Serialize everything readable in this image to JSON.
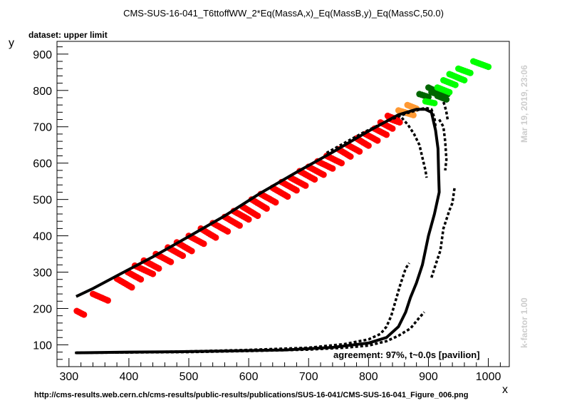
{
  "header": {
    "title": "CMS-SUS-16-041_T6ttoffWW_2*Eq(MassA,x)_Eq(MassB,y)_Eq(MassC,50.0)",
    "subtitle": "dataset: upper limit"
  },
  "annotation": "agreement: 97%, t~0.0s [pavilion]",
  "footer_url": "http://cms-results.web.cern.ch/cms-results/public-results/publications/SUS-16-041/CMS-SUS-16-041_Figure_006.png",
  "timestamp": "Mar 19, 2019, 23:06",
  "kfactor": "k-factor 1.00",
  "chart_data": {
    "type": "scatter",
    "xlabel": "x",
    "ylabel": "y",
    "xlim": [
      280,
      1035
    ],
    "ylim": [
      40,
      935
    ],
    "xticks": [
      300,
      400,
      500,
      600,
      700,
      800,
      900,
      1000
    ],
    "yticks": [
      100,
      200,
      300,
      400,
      500,
      600,
      700,
      800,
      900
    ],
    "colors": {
      "excluded": "#ff0000",
      "marginal": "#ff9933",
      "boundary": "#006600",
      "allowed": "#00ff00",
      "line": "#000000"
    },
    "point_groups": [
      {
        "color": "excluded",
        "segments": [
          [
            313,
            193,
            325,
            183
          ],
          [
            340,
            240,
            365,
            222
          ],
          [
            380,
            282,
            405,
            258
          ],
          [
            398,
            300,
            420,
            280
          ],
          [
            410,
            318,
            440,
            295
          ],
          [
            425,
            332,
            450,
            310
          ],
          [
            445,
            350,
            470,
            328
          ],
          [
            465,
            368,
            490,
            345
          ],
          [
            480,
            382,
            505,
            358
          ],
          [
            500,
            400,
            525,
            378
          ],
          [
            520,
            420,
            545,
            395
          ],
          [
            540,
            435,
            565,
            412
          ],
          [
            560,
            452,
            585,
            428
          ],
          [
            575,
            468,
            600,
            445
          ],
          [
            590,
            480,
            615,
            455
          ],
          [
            605,
            500,
            630,
            475
          ],
          [
            620,
            515,
            645,
            492
          ],
          [
            640,
            532,
            665,
            508
          ],
          [
            655,
            548,
            680,
            525
          ],
          [
            670,
            560,
            695,
            538
          ],
          [
            685,
            578,
            710,
            555
          ],
          [
            700,
            590,
            725,
            568
          ],
          [
            715,
            605,
            740,
            585
          ],
          [
            730,
            620,
            755,
            600
          ],
          [
            750,
            638,
            770,
            618
          ],
          [
            765,
            650,
            785,
            632
          ],
          [
            780,
            668,
            800,
            648
          ],
          [
            795,
            680,
            815,
            662
          ],
          [
            810,
            695,
            830,
            678
          ],
          [
            820,
            712,
            840,
            695
          ],
          [
            835,
            722,
            852,
            712
          ],
          [
            832,
            730,
            848,
            720
          ]
        ]
      },
      {
        "color": "marginal",
        "segments": [
          [
            850,
            745,
            870,
            735
          ],
          [
            865,
            760,
            880,
            750
          ],
          [
            860,
            740,
            875,
            732
          ]
        ]
      },
      {
        "color": "boundary",
        "segments": [
          [
            885,
            790,
            900,
            782
          ],
          [
            900,
            808,
            910,
            800
          ],
          [
            905,
            795,
            915,
            790
          ],
          [
            915,
            785,
            930,
            775
          ],
          [
            920,
            795,
            932,
            790
          ]
        ]
      },
      {
        "color": "allowed",
        "segments": [
          [
            895,
            770,
            910,
            765
          ],
          [
            915,
            808,
            935,
            795
          ],
          [
            925,
            828,
            945,
            815
          ],
          [
            935,
            845,
            960,
            828
          ],
          [
            950,
            860,
            970,
            848
          ],
          [
            975,
            880,
            1000,
            865
          ]
        ]
      }
    ],
    "series": [
      {
        "style": "solid",
        "points": [
          [
            312,
            233
          ],
          [
            340,
            255
          ],
          [
            380,
            290
          ],
          [
            440,
            342
          ],
          [
            500,
            398
          ],
          [
            560,
            455
          ],
          [
            620,
            518
          ],
          [
            680,
            575
          ],
          [
            740,
            630
          ],
          [
            800,
            688
          ],
          [
            850,
            733
          ],
          [
            880,
            748
          ],
          [
            895,
            748
          ],
          [
            905,
            740
          ],
          [
            912,
            690
          ],
          [
            916,
            640
          ],
          [
            917,
            570
          ],
          [
            918,
            520
          ],
          [
            910,
            460
          ],
          [
            900,
            400
          ],
          [
            890,
            320
          ],
          [
            880,
            270
          ],
          [
            870,
            230
          ],
          [
            862,
            190
          ],
          [
            850,
            150
          ],
          [
            830,
            120
          ],
          [
            800,
            105
          ],
          [
            740,
            93
          ],
          [
            660,
            86
          ],
          [
            560,
            83
          ],
          [
            480,
            81
          ],
          [
            400,
            80
          ],
          [
            312,
            78
          ]
        ]
      },
      {
        "style": "dashed",
        "points": [
          [
            312,
            78
          ],
          [
            400,
            79
          ],
          [
            500,
            80
          ],
          [
            600,
            83
          ],
          [
            700,
            87
          ],
          [
            760,
            92
          ],
          [
            800,
            98
          ],
          [
            830,
            110
          ],
          [
            850,
            125
          ],
          [
            870,
            145
          ],
          [
            885,
            175
          ],
          [
            893,
            190
          ]
        ]
      },
      {
        "style": "dashed",
        "points": [
          [
            310,
            78
          ],
          [
            400,
            79
          ],
          [
            500,
            82
          ],
          [
            600,
            86
          ],
          [
            700,
            92
          ],
          [
            760,
            102
          ],
          [
            800,
            115
          ],
          [
            820,
            130
          ],
          [
            830,
            150
          ],
          [
            838,
            180
          ],
          [
            845,
            220
          ],
          [
            852,
            260
          ],
          [
            858,
            290
          ],
          [
            862,
            310
          ],
          [
            868,
            325
          ]
        ]
      },
      {
        "style": "dashed",
        "points": [
          [
            730,
            628
          ],
          [
            790,
            683
          ],
          [
            830,
            715
          ],
          [
            865,
            738
          ],
          [
            895,
            752
          ],
          [
            905,
            748
          ],
          [
            910,
            725
          ],
          [
            912,
            700
          ]
        ]
      },
      {
        "style": "dashed",
        "points": [
          [
            905,
            285
          ],
          [
            912,
            320
          ],
          [
            920,
            360
          ],
          [
            925,
            420
          ],
          [
            932,
            455
          ],
          [
            935,
            470
          ],
          [
            940,
            490
          ],
          [
            943,
            525
          ],
          [
            944,
            535
          ]
        ]
      },
      {
        "style": "dashed",
        "points": [
          [
            850,
            735
          ],
          [
            866,
            705
          ],
          [
            876,
            680
          ],
          [
            885,
            650
          ],
          [
            890,
            615
          ],
          [
            895,
            580
          ],
          [
            897,
            560
          ]
        ]
      },
      {
        "style": "dashed",
        "points": [
          [
            918,
            720
          ],
          [
            925,
            700
          ],
          [
            928,
            660
          ],
          [
            930,
            610
          ],
          [
            928,
            580
          ]
        ]
      },
      {
        "style": "dashed",
        "points": [
          [
            925,
            768
          ],
          [
            927,
            760
          ],
          [
            930,
            740
          ],
          [
            932,
            720
          ]
        ]
      }
    ]
  }
}
